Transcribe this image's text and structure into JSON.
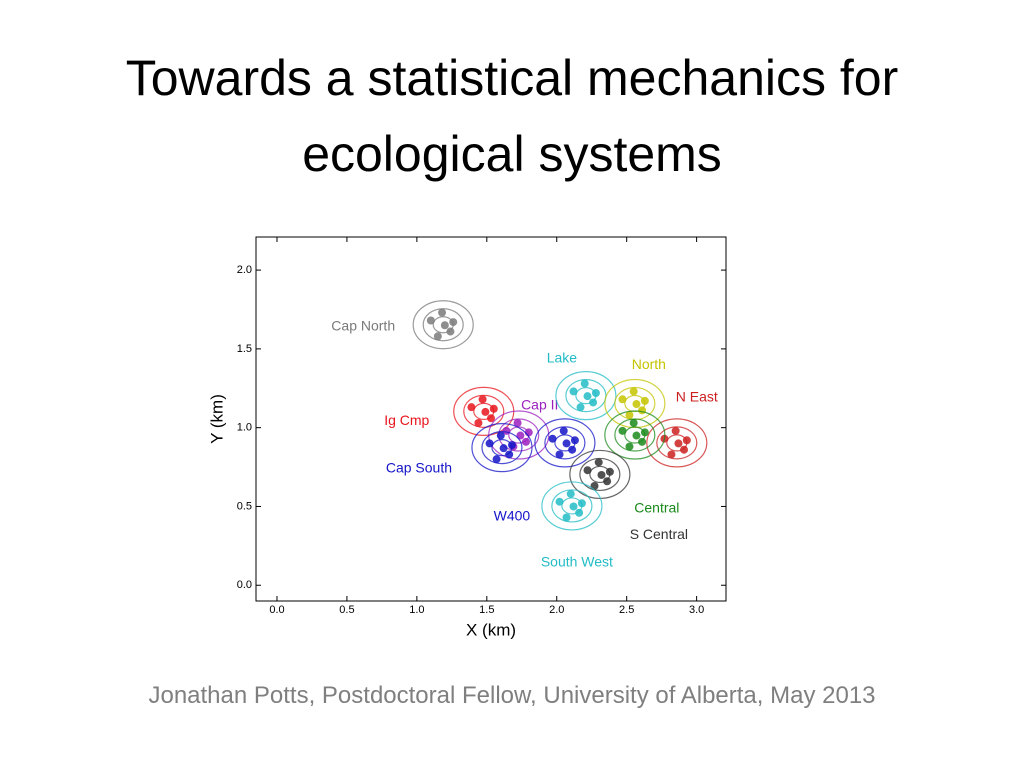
{
  "title": "Towards a statistical mechanics for ecological systems",
  "footer": "Jonathan Potts, Postdoctoral Fellow, University of Alberta, May 2013",
  "chart_data": {
    "type": "scatter",
    "x_label": "X (km)",
    "y_label": "Y (km)",
    "xlim": [
      -0.15,
      3.21
    ],
    "ylim": [
      -0.1,
      2.21
    ],
    "xticks": [
      {
        "value": 0,
        "label": "0.0"
      },
      0.5,
      {
        "value": 1,
        "label": "1.0"
      },
      1.5,
      {
        "value": 2,
        "label": "2.0"
      },
      2.5,
      {
        "value": 3,
        "label": "3.0"
      }
    ],
    "yticks": [
      {
        "value": 0,
        "label": "0.0"
      },
      0.5,
      {
        "value": 1,
        "label": "1.0"
      },
      1.5,
      {
        "value": 2,
        "label": "2.0"
      }
    ],
    "grid": false,
    "series": [
      {
        "name": "Cap North",
        "color": "#7a7a7a",
        "x": [
          1.1,
          1.24,
          1.18,
          1.15,
          1.26,
          1.2
        ],
        "values": [
          1.68,
          1.61,
          1.73,
          1.58,
          1.67,
          1.65
        ]
      },
      {
        "name": "Ig Cmp",
        "color": "#e8141c",
        "x": [
          1.39,
          1.53,
          1.47,
          1.44,
          1.55,
          1.49
        ],
        "values": [
          1.13,
          1.06,
          1.18,
          1.03,
          1.12,
          1.1
        ]
      },
      {
        "name": "Cap II",
        "color": "#9b1fbf",
        "x": [
          1.64,
          1.78,
          1.72,
          1.69,
          1.8,
          1.74
        ],
        "values": [
          0.98,
          0.91,
          1.03,
          0.88,
          0.97,
          0.95
        ]
      },
      {
        "name": "Cap South",
        "color": "#1414c8",
        "x": [
          1.52,
          1.66,
          1.6,
          1.57,
          1.68,
          1.62
        ],
        "values": [
          0.9,
          0.83,
          0.95,
          0.8,
          0.89,
          0.87
        ]
      },
      {
        "name": "W400",
        "color": "#1414c8",
        "x": [
          1.97,
          2.11,
          2.05,
          2.02,
          2.13,
          2.07
        ],
        "values": [
          0.93,
          0.86,
          0.98,
          0.83,
          0.92,
          0.9
        ]
      },
      {
        "name": "Lake",
        "color": "#22bcc6",
        "x": [
          2.12,
          2.26,
          2.2,
          2.17,
          2.28,
          2.22
        ],
        "values": [
          1.23,
          1.16,
          1.28,
          1.13,
          1.22,
          1.2
        ]
      },
      {
        "name": "North",
        "color": "#c4c400",
        "x": [
          2.47,
          2.61,
          2.55,
          2.52,
          2.63,
          2.57
        ],
        "values": [
          1.18,
          1.11,
          1.23,
          1.08,
          1.17,
          1.15
        ]
      },
      {
        "name": "N East",
        "color": "#cc2020",
        "x": [
          2.77,
          2.91,
          2.85,
          2.82,
          2.93,
          2.87
        ],
        "values": [
          0.93,
          0.86,
          0.98,
          0.83,
          0.92,
          0.9
        ]
      },
      {
        "name": "Central",
        "color": "#1a8a1a",
        "x": [
          2.47,
          2.61,
          2.55,
          2.52,
          2.63,
          2.57
        ],
        "values": [
          0.98,
          0.91,
          1.03,
          0.88,
          0.97,
          0.95
        ]
      },
      {
        "name": "S Central",
        "color": "#333333",
        "x": [
          2.22,
          2.36,
          2.3,
          2.27,
          2.38,
          2.32
        ],
        "values": [
          0.73,
          0.66,
          0.78,
          0.63,
          0.72,
          0.7
        ]
      },
      {
        "name": "South West",
        "color": "#22bcc6",
        "x": [
          2.02,
          2.16,
          2.1,
          2.07,
          2.18,
          2.12
        ],
        "values": [
          0.53,
          0.46,
          0.58,
          0.43,
          0.52,
          0.5
        ]
      }
    ]
  }
}
